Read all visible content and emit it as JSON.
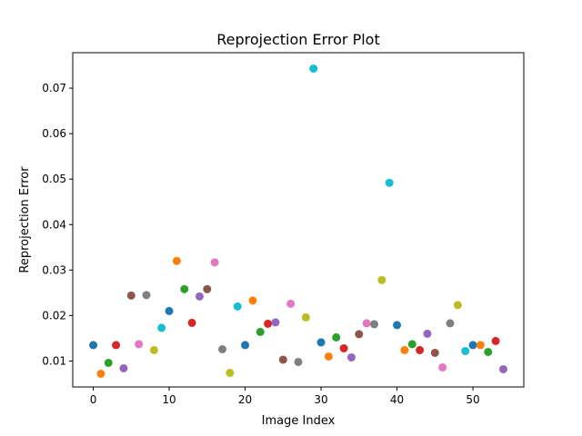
{
  "chart_data": {
    "type": "scatter",
    "title": "Reprojection Error Plot",
    "xlabel": "Image Index",
    "ylabel": "Reprojection Error",
    "xlim": [
      -2.7,
      56.7
    ],
    "ylim": [
      0.0043,
      0.0778
    ],
    "grid": false,
    "xticks": [
      0,
      10,
      20,
      30,
      40,
      50
    ],
    "yticks": [
      0.01,
      0.02,
      0.03,
      0.04,
      0.05,
      0.06,
      0.07
    ],
    "ytick_labels": [
      "0.01",
      "0.02",
      "0.03",
      "0.04",
      "0.05",
      "0.06",
      "0.07"
    ],
    "colors": [
      "#1f77b4",
      "#ff7f0e",
      "#2ca02c",
      "#d62728",
      "#9467bd",
      "#8c564b",
      "#e377c2",
      "#7f7f7f",
      "#bcbd22",
      "#17becf"
    ],
    "x": [
      0,
      1,
      2,
      3,
      4,
      5,
      6,
      7,
      8,
      9,
      10,
      11,
      12,
      13,
      14,
      15,
      16,
      17,
      18,
      19,
      20,
      21,
      22,
      23,
      24,
      25,
      26,
      27,
      28,
      29,
      30,
      31,
      32,
      33,
      34,
      35,
      36,
      37,
      38,
      39,
      40,
      41,
      42,
      43,
      44,
      45,
      46,
      47,
      48,
      49,
      50,
      51,
      52,
      53,
      54
    ],
    "y": [
      0.0135,
      0.0072,
      0.0096,
      0.0135,
      0.0084,
      0.0244,
      0.0137,
      0.0245,
      0.0124,
      0.0173,
      0.021,
      0.032,
      0.0258,
      0.0184,
      0.0242,
      0.0258,
      0.0317,
      0.0126,
      0.0074,
      0.022,
      0.0135,
      0.0233,
      0.0164,
      0.0182,
      0.0185,
      0.0103,
      0.0226,
      0.0098,
      0.0196,
      0.0743,
      0.0141,
      0.011,
      0.0152,
      0.0128,
      0.0108,
      0.0159,
      0.0183,
      0.0181,
      0.0278,
      0.0492,
      0.0179,
      0.0124,
      0.0137,
      0.0124,
      0.016,
      0.0118,
      0.0086,
      0.0183,
      0.0223,
      0.0122,
      0.0135,
      0.0135,
      0.012,
      0.0144,
      0.0082
    ]
  }
}
